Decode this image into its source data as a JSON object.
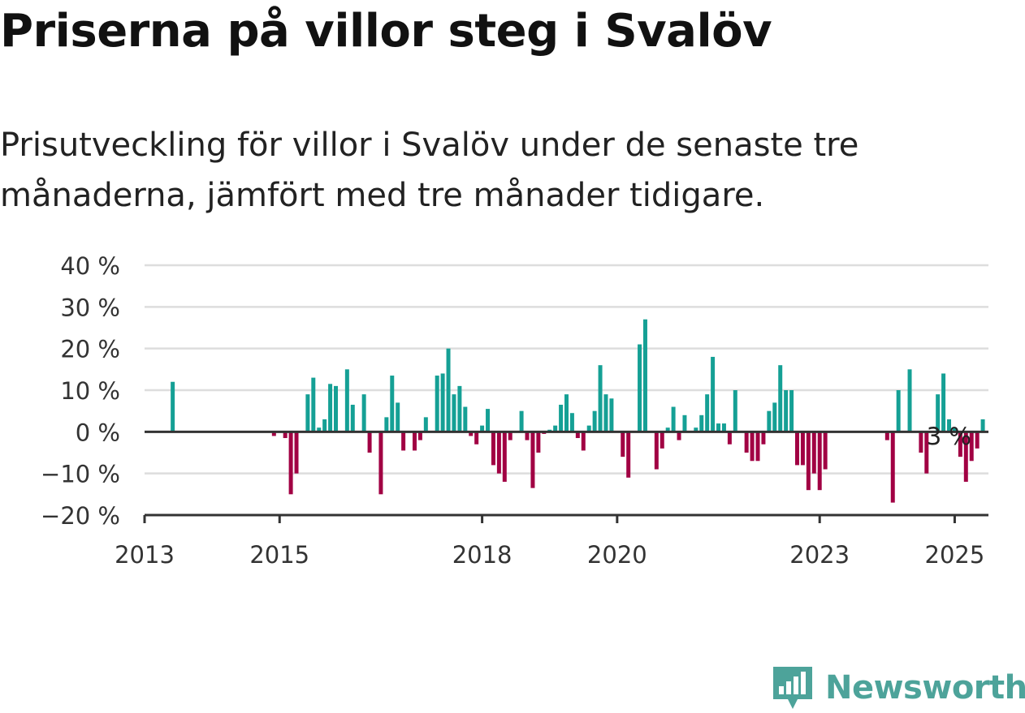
{
  "title": "Priserna på villor steg i Svalöv",
  "subtitle": "Prisutveckling för villor i Svalöv under de senaste tre månaderna, jämfört med tre månader tidigare.",
  "logo": {
    "text": "Newsworthy",
    "icon": "newsworthy-chart-icon"
  },
  "colors": {
    "positive": "#15a095",
    "negative": "#a10043",
    "grid": "#dddddd",
    "axis": "#333333",
    "brand": "#4da39a"
  },
  "chart_data": {
    "type": "bar",
    "title": "",
    "xlabel": "",
    "ylabel": "",
    "unit": "%",
    "xlim": [
      "2013-01",
      "2025-07"
    ],
    "ylim": [
      -20,
      40
    ],
    "yticks": [
      -20,
      -10,
      0,
      10,
      20,
      30,
      40
    ],
    "ytick_labels": [
      "−20 %",
      "−10 %",
      "0 %",
      "10 %",
      "20 %",
      "30 %",
      "40 %"
    ],
    "xticks": [
      "2013",
      "2015",
      "2018",
      "2020",
      "2023",
      "2025"
    ],
    "grid": true,
    "annotation": {
      "text": "3 %",
      "x": "2025-01",
      "y": 3
    },
    "series": [
      {
        "points": [
          {
            "x": "2013-06",
            "y": 12
          },
          {
            "x": "2014-12",
            "y": -1
          },
          {
            "x": "2015-02",
            "y": -1.5
          },
          {
            "x": "2015-03",
            "y": -15
          },
          {
            "x": "2015-04",
            "y": -10
          },
          {
            "x": "2015-06",
            "y": 9
          },
          {
            "x": "2015-07",
            "y": 13
          },
          {
            "x": "2015-08",
            "y": 1
          },
          {
            "x": "2015-09",
            "y": 3
          },
          {
            "x": "2015-10",
            "y": 11.5
          },
          {
            "x": "2015-11",
            "y": 11
          },
          {
            "x": "2016-01",
            "y": 15
          },
          {
            "x": "2016-02",
            "y": 6.5
          },
          {
            "x": "2016-04",
            "y": 9
          },
          {
            "x": "2016-05",
            "y": -5
          },
          {
            "x": "2016-07",
            "y": -15
          },
          {
            "x": "2016-08",
            "y": 3.5
          },
          {
            "x": "2016-09",
            "y": 13.5
          },
          {
            "x": "2016-10",
            "y": 7
          },
          {
            "x": "2016-11",
            "y": -4.5
          },
          {
            "x": "2017-01",
            "y": -4.5
          },
          {
            "x": "2017-02",
            "y": -2
          },
          {
            "x": "2017-03",
            "y": 3.5
          },
          {
            "x": "2017-05",
            "y": 13.5
          },
          {
            "x": "2017-06",
            "y": 14
          },
          {
            "x": "2017-07",
            "y": 20
          },
          {
            "x": "2017-08",
            "y": 9
          },
          {
            "x": "2017-09",
            "y": 11
          },
          {
            "x": "2017-10",
            "y": 6
          },
          {
            "x": "2017-11",
            "y": -1
          },
          {
            "x": "2017-12",
            "y": -3
          },
          {
            "x": "2018-01",
            "y": 1.5
          },
          {
            "x": "2018-02",
            "y": 5.5
          },
          {
            "x": "2018-03",
            "y": -8
          },
          {
            "x": "2018-04",
            "y": -10
          },
          {
            "x": "2018-05",
            "y": -12
          },
          {
            "x": "2018-06",
            "y": -2
          },
          {
            "x": "2018-08",
            "y": 5
          },
          {
            "x": "2018-09",
            "y": -2
          },
          {
            "x": "2018-10",
            "y": -13.5
          },
          {
            "x": "2018-11",
            "y": -5
          },
          {
            "x": "2018-12",
            "y": -0.5
          },
          {
            "x": "2019-01",
            "y": 0.5
          },
          {
            "x": "2019-02",
            "y": 1.5
          },
          {
            "x": "2019-03",
            "y": 6.5
          },
          {
            "x": "2019-04",
            "y": 9
          },
          {
            "x": "2019-05",
            "y": 4.5
          },
          {
            "x": "2019-06",
            "y": -1.5
          },
          {
            "x": "2019-07",
            "y": -4.5
          },
          {
            "x": "2019-08",
            "y": 1.5
          },
          {
            "x": "2019-09",
            "y": 5
          },
          {
            "x": "2019-10",
            "y": 16
          },
          {
            "x": "2019-11",
            "y": 9
          },
          {
            "x": "2019-12",
            "y": 8
          },
          {
            "x": "2020-02",
            "y": -6
          },
          {
            "x": "2020-03",
            "y": -11
          },
          {
            "x": "2020-05",
            "y": 21
          },
          {
            "x": "2020-06",
            "y": 27
          },
          {
            "x": "2020-08",
            "y": -9
          },
          {
            "x": "2020-09",
            "y": -4
          },
          {
            "x": "2020-10",
            "y": 1
          },
          {
            "x": "2020-11",
            "y": 6
          },
          {
            "x": "2020-12",
            "y": -2
          },
          {
            "x": "2021-01",
            "y": 4
          },
          {
            "x": "2021-03",
            "y": 1
          },
          {
            "x": "2021-04",
            "y": 4
          },
          {
            "x": "2021-05",
            "y": 9
          },
          {
            "x": "2021-06",
            "y": 18
          },
          {
            "x": "2021-07",
            "y": 2
          },
          {
            "x": "2021-08",
            "y": 2
          },
          {
            "x": "2021-09",
            "y": -3
          },
          {
            "x": "2021-10",
            "y": 10
          },
          {
            "x": "2021-12",
            "y": -5
          },
          {
            "x": "2022-01",
            "y": -7
          },
          {
            "x": "2022-02",
            "y": -7
          },
          {
            "x": "2022-03",
            "y": -3
          },
          {
            "x": "2022-04",
            "y": 5
          },
          {
            "x": "2022-05",
            "y": 7
          },
          {
            "x": "2022-06",
            "y": 16
          },
          {
            "x": "2022-07",
            "y": 10
          },
          {
            "x": "2022-08",
            "y": 10
          },
          {
            "x": "2022-09",
            "y": -8
          },
          {
            "x": "2022-10",
            "y": -8
          },
          {
            "x": "2022-11",
            "y": -14
          },
          {
            "x": "2022-12",
            "y": -10
          },
          {
            "x": "2023-01",
            "y": -14
          },
          {
            "x": "2023-02",
            "y": -9
          },
          {
            "x": "2024-01",
            "y": -2
          },
          {
            "x": "2024-02",
            "y": -17
          },
          {
            "x": "2024-03",
            "y": 10
          },
          {
            "x": "2024-05",
            "y": 15
          },
          {
            "x": "2024-07",
            "y": -5
          },
          {
            "x": "2024-08",
            "y": -10
          },
          {
            "x": "2024-10",
            "y": 9
          },
          {
            "x": "2024-11",
            "y": 14
          },
          {
            "x": "2024-12",
            "y": 3
          },
          {
            "x": "2025-01",
            "y": 1
          },
          {
            "x": "2025-02",
            "y": -6
          },
          {
            "x": "2025-03",
            "y": -12
          },
          {
            "x": "2025-04",
            "y": -7
          },
          {
            "x": "2025-05",
            "y": -4
          },
          {
            "x": "2025-06",
            "y": 3
          }
        ]
      }
    ]
  }
}
